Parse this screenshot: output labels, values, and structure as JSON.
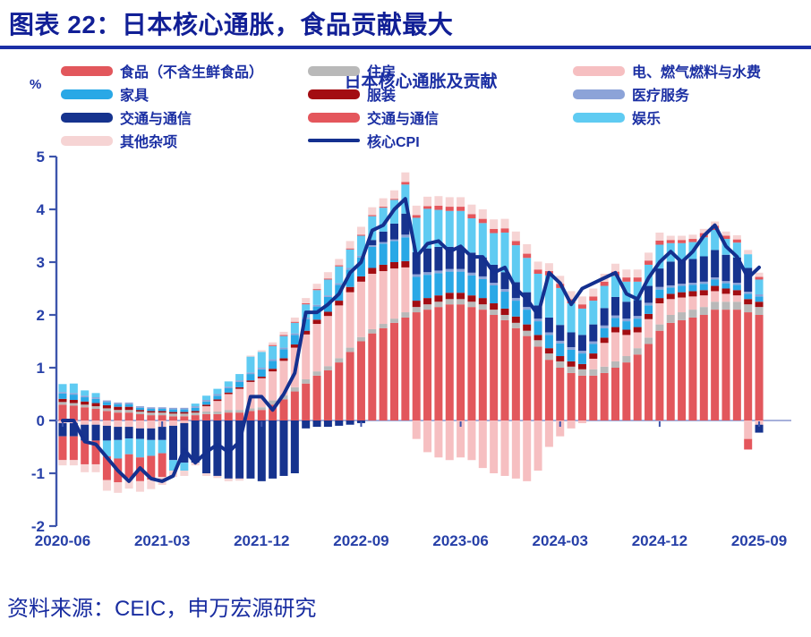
{
  "header": {
    "title": "图表 22：日本核心通胀，食品贡献最大"
  },
  "footer": {
    "source": "资料来源：CEIC，申万宏源研究"
  },
  "chart_data": {
    "type": "stacked-bar+line",
    "title": "日本核心通胀及贡献",
    "unit_label": "%",
    "ylim": [
      -2,
      5
    ],
    "yticks": [
      5,
      4,
      3,
      2,
      1,
      0,
      -1,
      -2
    ],
    "grid": false,
    "legend_position": "top",
    "xtick_labels": [
      "2020-06",
      "2021-03",
      "2021-12",
      "2022-09",
      "2023-06",
      "2024-03",
      "2024-12",
      "2025-09"
    ],
    "xtick_indices": [
      0,
      9,
      18,
      27,
      36,
      45,
      54,
      63
    ],
    "months": [
      "2020-06",
      "2020-07",
      "2020-08",
      "2020-09",
      "2020-10",
      "2020-11",
      "2020-12",
      "2021-01",
      "2021-02",
      "2021-03",
      "2021-04",
      "2021-05",
      "2021-06",
      "2021-07",
      "2021-08",
      "2021-09",
      "2021-10",
      "2021-11",
      "2021-12",
      "2022-01",
      "2022-02",
      "2022-03",
      "2022-04",
      "2022-05",
      "2022-06",
      "2022-07",
      "2022-08",
      "2022-09",
      "2022-10",
      "2022-11",
      "2022-12",
      "2023-01",
      "2023-02",
      "2023-03",
      "2023-04",
      "2023-05",
      "2023-06",
      "2023-07",
      "2023-08",
      "2023-09",
      "2023-10",
      "2023-11",
      "2023-12",
      "2024-01",
      "2024-02",
      "2024-03",
      "2024-04",
      "2024-05",
      "2024-06",
      "2024-07",
      "2024-08",
      "2024-09",
      "2024-10",
      "2024-11",
      "2024-12",
      "2025-01",
      "2025-02",
      "2025-03",
      "2025-04",
      "2025-05",
      "2025-06",
      "2025-07",
      "2025-08",
      "2025-09"
    ],
    "series": [
      {
        "name": "食品（不含生鲜食品）",
        "color": "#E2575C",
        "values": [
          0.3,
          0.28,
          0.25,
          0.22,
          0.18,
          0.15,
          0.15,
          0.12,
          0.1,
          0.1,
          0.08,
          0.08,
          0.1,
          0.12,
          0.12,
          0.15,
          0.15,
          0.18,
          0.2,
          0.3,
          0.4,
          0.55,
          0.7,
          0.85,
          0.95,
          1.1,
          1.3,
          1.5,
          1.65,
          1.75,
          1.85,
          1.95,
          2.05,
          2.1,
          2.15,
          2.2,
          2.2,
          2.15,
          2.1,
          2.0,
          1.9,
          1.75,
          1.6,
          1.4,
          1.15,
          1.0,
          0.9,
          0.85,
          0.85,
          0.9,
          1.0,
          1.1,
          1.25,
          1.45,
          1.7,
          1.85,
          1.9,
          1.95,
          2.0,
          2.1,
          2.1,
          2.1,
          2.05,
          2.0
        ]
      },
      {
        "name": "住房",
        "color": "#B9B9B9",
        "values": [
          0.05,
          0.05,
          0.05,
          0.05,
          0.05,
          0.05,
          0.05,
          0.05,
          0.05,
          0.05,
          0.05,
          0.05,
          0.05,
          0.05,
          0.05,
          0.05,
          0.05,
          0.05,
          0.05,
          0.08,
          0.08,
          0.08,
          0.08,
          0.08,
          0.08,
          0.08,
          0.08,
          0.08,
          0.08,
          0.08,
          0.08,
          0.1,
          0.1,
          0.1,
          0.1,
          0.1,
          0.1,
          0.1,
          0.1,
          0.1,
          0.1,
          0.1,
          0.1,
          0.12,
          0.12,
          0.12,
          0.12,
          0.12,
          0.12,
          0.12,
          0.12,
          0.12,
          0.12,
          0.12,
          0.12,
          0.15,
          0.15,
          0.15,
          0.15,
          0.15,
          0.15,
          0.15,
          0.15,
          0.15
        ]
      },
      {
        "name": "电、燃气燃料与水费",
        "color": "#F6BFC1",
        "values": [
          -0.05,
          -0.05,
          -0.08,
          -0.08,
          -0.1,
          -0.12,
          -0.12,
          -0.15,
          -0.15,
          -0.12,
          -0.1,
          -0.05,
          0.0,
          0.1,
          0.2,
          0.3,
          0.4,
          0.5,
          0.55,
          0.55,
          0.65,
          0.75,
          0.85,
          0.9,
          0.95,
          1.0,
          1.05,
          1.05,
          1.05,
          1.0,
          0.95,
          0.85,
          -0.35,
          -0.6,
          -0.7,
          -0.75,
          -0.7,
          -0.75,
          -0.9,
          -1.0,
          -1.05,
          -1.1,
          -1.15,
          -0.95,
          -0.5,
          -0.3,
          -0.15,
          -0.05,
          0.2,
          0.45,
          0.55,
          0.4,
          0.3,
          0.35,
          0.4,
          0.3,
          0.28,
          0.25,
          0.22,
          0.2,
          0.15,
          0.12,
          -0.35,
          -0.08
        ]
      },
      {
        "name": "服装",
        "color": "#A30D12",
        "values": [
          0.06,
          0.06,
          0.06,
          0.06,
          0.06,
          0.06,
          0.06,
          0.03,
          0.03,
          0.03,
          0.03,
          0.03,
          0.03,
          0.03,
          0.03,
          0.03,
          0.03,
          0.03,
          0.03,
          0.05,
          0.05,
          0.06,
          0.07,
          0.08,
          0.08,
          0.09,
          0.1,
          0.1,
          0.11,
          0.12,
          0.12,
          0.12,
          0.12,
          0.12,
          0.12,
          0.12,
          0.12,
          0.12,
          0.12,
          0.12,
          0.12,
          0.12,
          0.12,
          0.1,
          0.1,
          0.1,
          0.1,
          0.1,
          0.1,
          0.1,
          0.1,
          0.1,
          0.1,
          0.1,
          0.1,
          0.1,
          0.1,
          0.1,
          0.1,
          0.1,
          0.1,
          0.1,
          0.1,
          0.1
        ]
      },
      {
        "name": "家具",
        "color": "#29A8E6",
        "values": [
          0.1,
          0.1,
          0.08,
          0.08,
          0.06,
          0.05,
          0.05,
          0.04,
          0.04,
          0.04,
          0.05,
          0.05,
          0.06,
          0.06,
          0.07,
          0.08,
          0.1,
          0.12,
          0.14,
          0.15,
          0.17,
          0.18,
          0.22,
          0.25,
          0.28,
          0.3,
          0.33,
          0.36,
          0.4,
          0.4,
          0.4,
          0.45,
          0.45,
          0.44,
          0.42,
          0.4,
          0.4,
          0.38,
          0.36,
          0.34,
          0.32,
          0.3,
          0.28,
          0.26,
          0.25,
          0.24,
          0.22,
          0.2,
          0.18,
          0.18,
          0.17,
          0.16,
          0.16,
          0.16,
          0.16,
          0.12,
          0.12,
          0.12,
          0.12,
          0.12,
          0.1,
          0.1,
          0.1,
          0.1
        ]
      },
      {
        "name": "医疗服务",
        "color": "#8CA3D8",
        "values": [
          0.03,
          0.03,
          0.03,
          0.03,
          0.03,
          0.03,
          0.03,
          0.03,
          0.03,
          0.03,
          0.03,
          0.03,
          0.03,
          0.03,
          0.03,
          0.03,
          0.03,
          0.03,
          0.03,
          0.03,
          0.03,
          0.03,
          0.03,
          0.03,
          0.03,
          0.03,
          0.03,
          0.03,
          0.03,
          0.03,
          0.03,
          0.05,
          0.05,
          0.05,
          0.05,
          0.05,
          0.05,
          0.05,
          0.05,
          0.05,
          0.05,
          0.05,
          0.05,
          0.05,
          0.05,
          0.05,
          0.05,
          0.05,
          0.05,
          0.05,
          0.05,
          0.05,
          0.05,
          0.05,
          0.05,
          0.04,
          0.04,
          0.04,
          0.04,
          0.04,
          0.04,
          0.04,
          0.04,
          0.04
        ]
      },
      {
        "name": "交通与通信",
        "color": "#16338E",
        "values": [
          -0.25,
          -0.25,
          -0.3,
          -0.3,
          -0.28,
          -0.25,
          -0.22,
          -0.2,
          -0.22,
          -0.25,
          -0.65,
          -0.75,
          -0.8,
          -1.0,
          -1.05,
          -1.1,
          -1.1,
          -1.1,
          -1.15,
          -1.1,
          -1.05,
          -1.0,
          -0.15,
          -0.12,
          -0.12,
          -0.1,
          -0.08,
          -0.05,
          0.1,
          0.2,
          0.3,
          0.4,
          0.42,
          0.45,
          0.45,
          0.42,
          0.4,
          0.38,
          0.36,
          0.34,
          0.32,
          0.3,
          0.28,
          0.25,
          0.28,
          0.3,
          0.28,
          0.3,
          0.32,
          0.33,
          0.35,
          0.32,
          0.3,
          0.32,
          0.35,
          0.45,
          0.45,
          0.45,
          0.48,
          0.52,
          0.5,
          0.48,
          0.45,
          -0.15
        ]
      },
      {
        "name": "娱乐",
        "color": "#5FCBF2",
        "values": [
          0.15,
          0.18,
          0.1,
          0.08,
          -0.3,
          -0.35,
          -0.3,
          -0.35,
          -0.3,
          -0.25,
          -0.2,
          -0.15,
          0.05,
          0.08,
          0.1,
          0.1,
          0.12,
          0.3,
          0.3,
          0.25,
          0.22,
          0.2,
          0.25,
          0.28,
          0.3,
          0.32,
          0.35,
          0.38,
          0.45,
          0.45,
          0.45,
          0.55,
          0.65,
          0.75,
          0.7,
          0.68,
          0.7,
          0.65,
          0.65,
          0.6,
          0.75,
          0.7,
          0.65,
          0.6,
          0.8,
          0.7,
          0.55,
          0.5,
          0.45,
          0.42,
          0.4,
          0.38,
          0.35,
          0.4,
          0.45,
          0.35,
          0.32,
          0.32,
          0.36,
          0.38,
          0.3,
          0.28,
          0.26,
          0.28
        ]
      },
      {
        "name": "交通与通信",
        "color": "#E4565C",
        "values": [
          -0.45,
          -0.45,
          -0.45,
          -0.45,
          -0.45,
          -0.45,
          -0.45,
          -0.45,
          -0.45,
          -0.45,
          0.0,
          0.0,
          0.0,
          0.0,
          0.0,
          0.0,
          0.0,
          0.0,
          0.0,
          0.02,
          0.02,
          0.02,
          0.02,
          0.02,
          0.02,
          0.02,
          0.02,
          0.02,
          0.02,
          0.02,
          0.02,
          0.05,
          0.05,
          0.05,
          0.08,
          0.08,
          0.08,
          0.08,
          0.08,
          0.08,
          0.08,
          0.08,
          0.08,
          0.08,
          0.08,
          0.08,
          0.08,
          0.08,
          0.08,
          0.08,
          0.08,
          0.08,
          0.08,
          0.08,
          0.08,
          0.06,
          0.06,
          0.06,
          0.08,
          0.08,
          0.06,
          0.06,
          -0.2,
          0.05
        ]
      },
      {
        "name": "其他杂项",
        "color": "#F6D4D4",
        "values": [
          -0.1,
          -0.1,
          -0.15,
          -0.15,
          -0.2,
          -0.2,
          -0.2,
          -0.2,
          -0.18,
          -0.15,
          -0.12,
          -0.1,
          -0.05,
          -0.05,
          -0.04,
          -0.05,
          -0.04,
          0.02,
          0.03,
          0.05,
          0.06,
          0.08,
          0.1,
          0.1,
          0.12,
          0.12,
          0.14,
          0.15,
          0.15,
          0.16,
          0.16,
          0.18,
          0.18,
          0.18,
          0.18,
          0.18,
          0.18,
          0.18,
          0.18,
          0.18,
          0.18,
          0.18,
          0.18,
          0.15,
          0.15,
          0.15,
          0.15,
          0.15,
          0.15,
          0.15,
          0.15,
          0.15,
          0.15,
          0.15,
          0.15,
          0.08,
          0.08,
          0.08,
          0.08,
          0.08,
          0.08,
          0.08,
          0.08,
          0.08
        ]
      }
    ],
    "line": {
      "name": "核心CPI",
      "color": "#14308F",
      "values": [
        0.0,
        0.0,
        -0.4,
        -0.45,
        -0.7,
        -0.95,
        -1.15,
        -0.9,
        -1.1,
        -1.15,
        -1.05,
        -0.55,
        -0.8,
        -0.6,
        -0.45,
        -0.6,
        -0.4,
        0.45,
        0.45,
        0.2,
        0.5,
        0.9,
        2.05,
        2.05,
        2.2,
        2.4,
        2.8,
        3.0,
        3.6,
        3.7,
        4.0,
        4.2,
        3.1,
        3.35,
        3.4,
        3.2,
        3.3,
        3.1,
        3.1,
        2.8,
        2.9,
        2.5,
        2.3,
        2.0,
        2.8,
        2.6,
        2.2,
        2.5,
        2.6,
        2.7,
        2.8,
        2.4,
        2.3,
        2.7,
        3.0,
        3.2,
        3.0,
        3.2,
        3.5,
        3.7,
        3.3,
        3.1,
        2.7,
        2.9
      ]
    },
    "legend_rows": [
      [
        {
          "label": "食品（不含生鲜食品）",
          "color": "#E2575C",
          "type": "box"
        },
        {
          "label": "住房",
          "color": "#B9B9B9",
          "type": "box"
        },
        {
          "label": "电、燃气燃料与水费",
          "color": "#F6BFC1",
          "type": "box"
        }
      ],
      [
        {
          "label": "家具",
          "color": "#29A8E6",
          "type": "box"
        },
        {
          "label": "服装",
          "color": "#A30D12",
          "type": "box"
        },
        {
          "label": "医疗服务",
          "color": "#8CA3D8",
          "type": "box"
        }
      ],
      [
        {
          "label": "交通与通信",
          "color": "#16338E",
          "type": "box"
        },
        {
          "label": "交通与通信",
          "color": "#E4565C",
          "type": "box"
        },
        {
          "label": "娱乐",
          "color": "#5FCBF2",
          "type": "box"
        }
      ],
      [
        {
          "label": "其他杂项",
          "color": "#F6D4D4",
          "type": "box"
        },
        {
          "label": "核心CPI",
          "color": "#14308F",
          "type": "line"
        }
      ]
    ],
    "colors": {
      "axis": "#3D55AC",
      "zero_line": "#8A95CF",
      "tick_text": "#2740A8",
      "title_text": "#1B2FA3"
    }
  }
}
